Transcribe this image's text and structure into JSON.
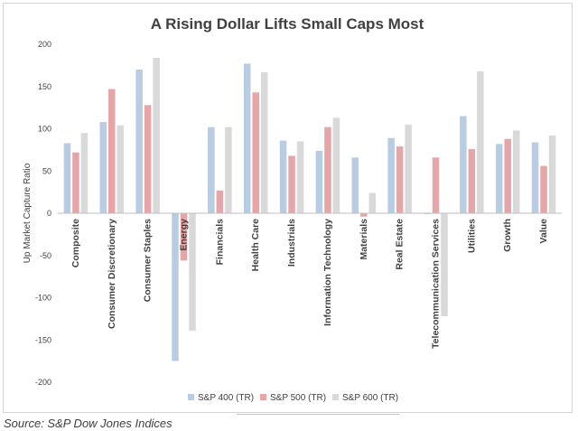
{
  "chart_data": {
    "type": "bar",
    "title": "A Rising Dollar Lifts Small Caps Most",
    "ylabel": "Up Market Capture Ratio",
    "xlabel": "",
    "ylim": [
      -200,
      200
    ],
    "yticks": [
      200,
      150,
      100,
      50,
      0,
      -50,
      -100,
      -150,
      -200
    ],
    "grid": false,
    "legend_position": "bottom",
    "categories": [
      "Composite",
      "Consumer Discretionary",
      "Consumer Staples",
      "Energy",
      "Financials",
      "Health Care",
      "Industrials",
      "Information Technology",
      "Materials",
      "Real Estate",
      "Telecommunication Services",
      "Utilities",
      "Growth",
      "Value"
    ],
    "series": [
      {
        "name": "S&P 400 (TR)",
        "color": "#b8cce4",
        "values": [
          83,
          108,
          170,
          -175,
          102,
          177,
          86,
          74,
          66,
          89,
          -1,
          115,
          82,
          84
        ]
      },
      {
        "name": "S&P 500 (TR)",
        "color": "#e6a6a8",
        "values": [
          72,
          147,
          128,
          -56,
          27,
          143,
          68,
          102,
          -4,
          79,
          66,
          76,
          88,
          56
        ]
      },
      {
        "name": "S&P 600 (TR)",
        "color": "#d9d9d9",
        "values": [
          95,
          104,
          184,
          -139,
          102,
          167,
          85,
          113,
          24,
          105,
          -122,
          168,
          98,
          92
        ]
      }
    ]
  },
  "source": "Source: S&P Dow Jones Indices"
}
